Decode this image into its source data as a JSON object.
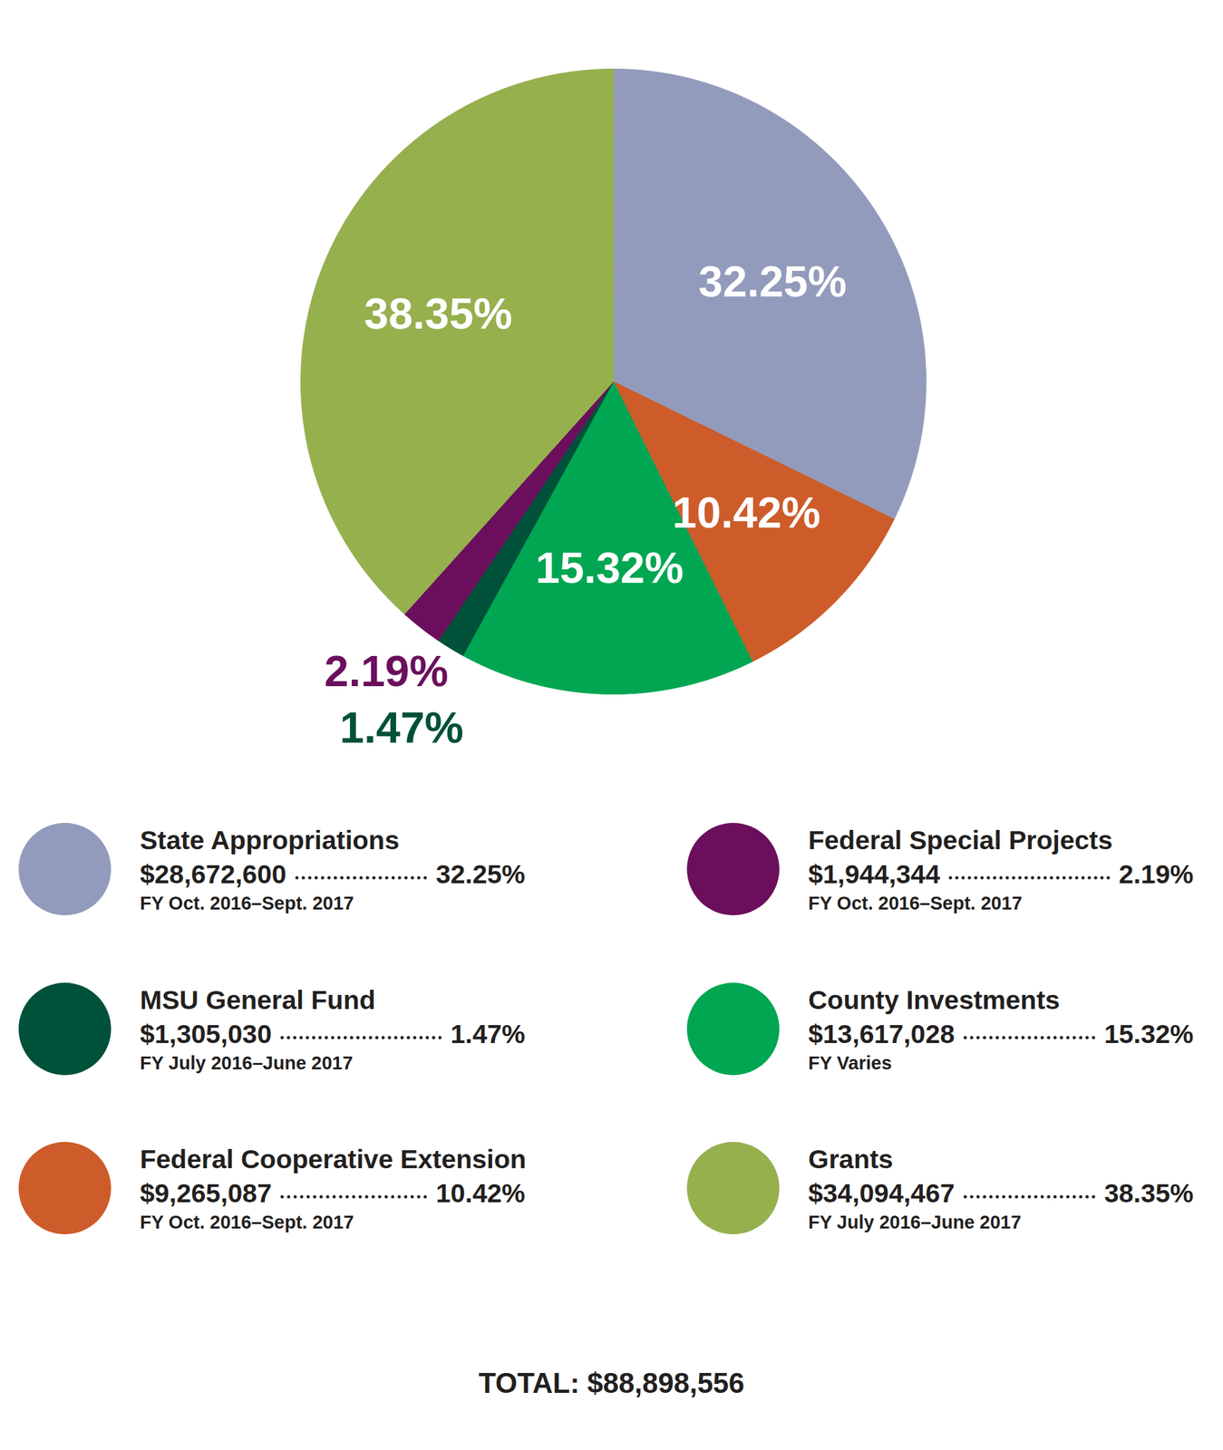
{
  "chart_data": {
    "type": "pie",
    "categories": [
      "State Appropriations",
      "Federal Cooperative Extension",
      "County Investments",
      "MSU General Fund",
      "Federal Special Projects",
      "Grants"
    ],
    "values": [
      32.25,
      10.42,
      15.32,
      1.47,
      2.19,
      38.35
    ],
    "value_labels": [
      "32.25%",
      "10.42%",
      "15.32%",
      "1.47%",
      "2.19%",
      "38.35%"
    ],
    "data_labels": true,
    "colors": [
      "#929bbb",
      "#cd5c2a",
      "#00a651",
      "#00513a",
      "#6b0f5d",
      "#96b04e"
    ],
    "amounts": [
      28672600,
      9265087,
      13617028,
      1305030,
      1944344,
      34094467
    ],
    "amount_labels": [
      "$28,672,600",
      "$9,265,087",
      "$13,617,028",
      "$1,305,030",
      "$1,944,344",
      "$34,094,467"
    ],
    "fiscal_years": [
      "FY Oct. 2016–Sept. 2017",
      "FY Oct. 2016–Sept. 2017",
      "FY Varies",
      "FY July 2016–June 2017",
      "FY Oct. 2016–Sept. 2017",
      "FY July 2016–June 2017"
    ],
    "total": 88898556,
    "total_label": "TOTAL: $88,898,556",
    "legend": "bottom"
  }
}
